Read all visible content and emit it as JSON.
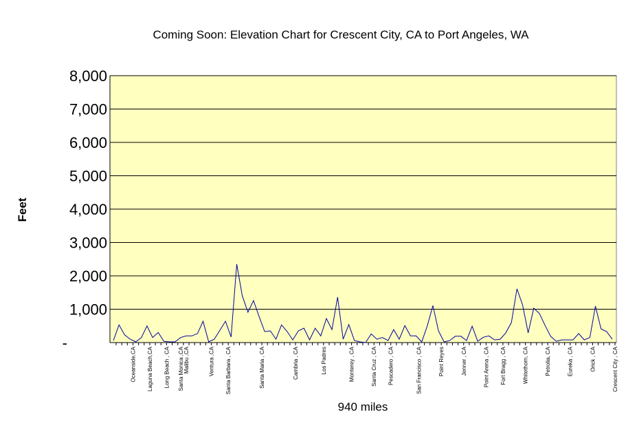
{
  "chart_data": {
    "type": "line",
    "title": "Coming Soon: Elevation Chart for Crescent City, CA to Port Angeles, WA",
    "xlabel": "940 miles",
    "ylabel": "Feet",
    "ylim": [
      0,
      8000
    ],
    "yticks": [
      {
        "value": 0,
        "label": "-"
      },
      {
        "value": 1000,
        "label": "1,000"
      },
      {
        "value": 2000,
        "label": "2,000"
      },
      {
        "value": 3000,
        "label": "3,000"
      },
      {
        "value": 4000,
        "label": "4,000"
      },
      {
        "value": 5000,
        "label": "5,000"
      },
      {
        "value": 6000,
        "label": "6,000"
      },
      {
        "value": 7000,
        "label": "7,000"
      },
      {
        "value": 8000,
        "label": "8,000"
      }
    ],
    "grid": true,
    "plot_background": "#ffffc0",
    "line_color": "#0000a0",
    "values": [
      60,
      530,
      230,
      100,
      20,
      150,
      500,
      150,
      300,
      40,
      20,
      20,
      150,
      200,
      200,
      270,
      640,
      20,
      100,
      370,
      640,
      170,
      2350,
      1400,
      910,
      1260,
      780,
      330,
      350,
      100,
      530,
      330,
      80,
      350,
      430,
      80,
      430,
      200,
      720,
      390,
      1360,
      100,
      540,
      60,
      20,
      0,
      260,
      100,
      150,
      60,
      390,
      100,
      510,
      200,
      200,
      20,
      500,
      1110,
      350,
      20,
      60,
      190,
      190,
      60,
      490,
      40,
      160,
      200,
      80,
      100,
      290,
      600,
      1610,
      1130,
      290,
      1030,
      870,
      520,
      190,
      40,
      80,
      80,
      80,
      270,
      80,
      150,
      1090,
      410,
      330,
      100
    ],
    "x_labels": [
      {
        "at": 3,
        "text": "Oceanside,CA"
      },
      {
        "at": 6,
        "text": "Laguna Beach,CA"
      },
      {
        "at": 9,
        "text": "Long  Beach , CA"
      },
      {
        "at": 12,
        "text": "Santa Monica ,CA",
        "text2": "Malibu ,CA"
      },
      {
        "at": 17,
        "text": "Ventura ,CA"
      },
      {
        "at": 20,
        "text": "Santa Barbara , CA"
      },
      {
        "at": 26,
        "text": "Santa Maria , CA"
      },
      {
        "at": 32,
        "text": "Cambria , CA"
      },
      {
        "at": 37,
        "text": "Los Padres"
      },
      {
        "at": 42,
        "text": "Monterey , CA"
      },
      {
        "at": 46,
        "text": "Santa Cruz , CA"
      },
      {
        "at": 49,
        "text": "Pescadero , CA"
      },
      {
        "at": 54,
        "text": "San Francisco , CA"
      },
      {
        "at": 58,
        "text": "Point Reyes"
      },
      {
        "at": 62,
        "text": "Jenner , CA"
      },
      {
        "at": 66,
        "text": "Point Arena , CA"
      },
      {
        "at": 69,
        "text": "Fort Bragg , CA"
      },
      {
        "at": 73,
        "text": "Whitethorn, CA"
      },
      {
        "at": 77,
        "text": "Petrolia, CA"
      },
      {
        "at": 81,
        "text": "Eureka , CA"
      },
      {
        "at": 85,
        "text": "Orick , CA"
      },
      {
        "at": 89,
        "text": "Crescent  City , CA"
      }
    ]
  }
}
